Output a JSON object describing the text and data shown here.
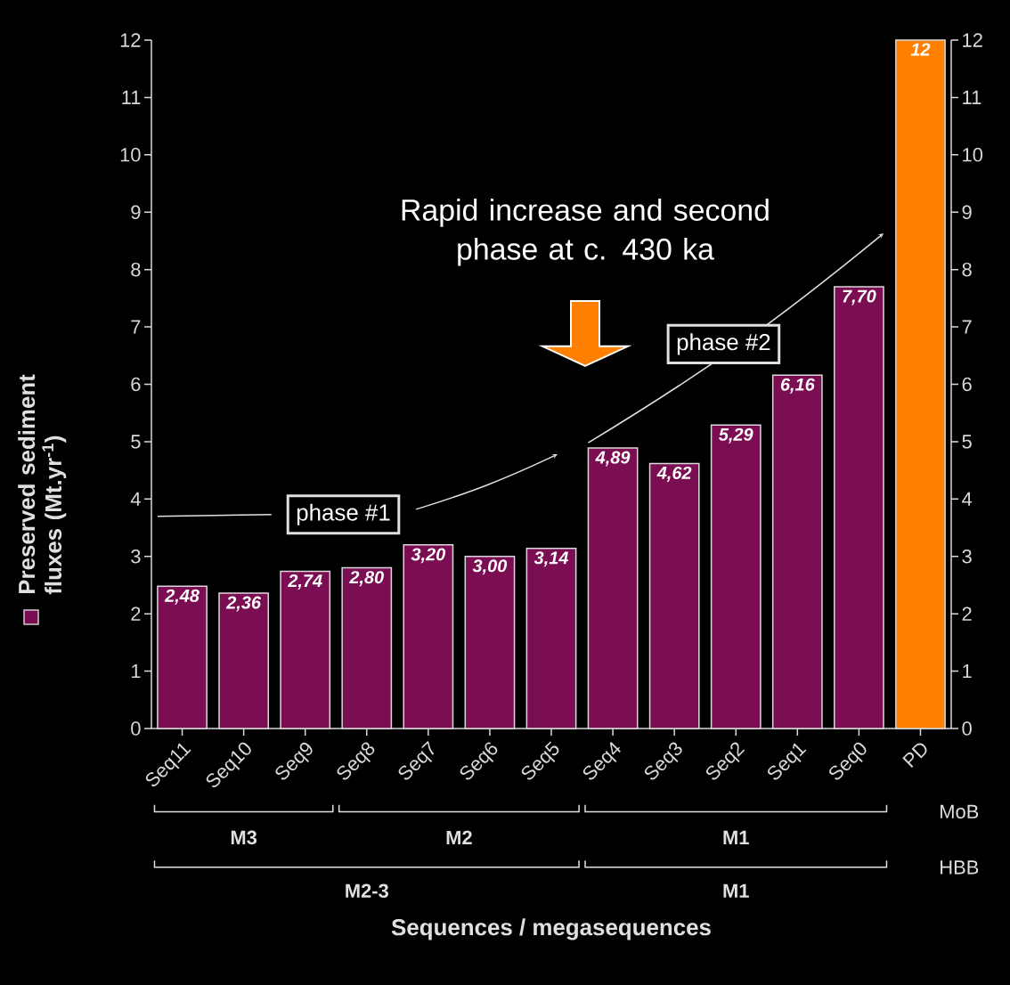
{
  "chart_data": {
    "type": "bar",
    "categories": [
      "Seq11",
      "Seq10",
      "Seq9",
      "Seq8",
      "Seq7",
      "Seq6",
      "Seq5",
      "Seq4",
      "Seq3",
      "Seq2",
      "Seq1",
      "Seq0",
      "PD"
    ],
    "series": [
      {
        "name": "Preserved sediment fluxes (Mt.yr$^{-1}$)",
        "values": [
          2.48,
          2.36,
          2.74,
          2.8,
          3.2,
          3.0,
          3.14,
          4.89,
          4.62,
          5.29,
          6.16,
          7.7,
          12
        ],
        "colors": [
          "#7b0e52",
          "#7b0e52",
          "#7b0e52",
          "#7b0e52",
          "#7b0e52",
          "#7b0e52",
          "#7b0e52",
          "#7b0e52",
          "#7b0e52",
          "#7b0e52",
          "#7b0e52",
          "#7b0e52",
          "#ff7f00"
        ],
        "value_labels": [
          "2,48",
          "2,36",
          "2,74",
          "2,80",
          "3,20",
          "3,00",
          "3,14",
          "4,89",
          "4,62",
          "5,29",
          "6,16",
          "7,70",
          "12"
        ]
      }
    ],
    "ylim": [
      0,
      12
    ],
    "yticks": [
      0,
      1,
      2,
      3,
      4,
      5,
      6,
      7,
      8,
      9,
      10,
      11,
      12
    ],
    "y2lim": [
      0,
      12
    ],
    "y2ticks": [
      0,
      1,
      2,
      3,
      4,
      5,
      6,
      7,
      8,
      9,
      10,
      11,
      12
    ],
    "legend": "left",
    "annotations": [
      "Rapid increase and second phase at c. 430 ka",
      "phase #1",
      "phase #2",
      "MoB",
      "M3",
      "M2",
      "M1",
      "HBB",
      "M2-3",
      "M1",
      "Sequences / megasequences"
    ]
  }
}
